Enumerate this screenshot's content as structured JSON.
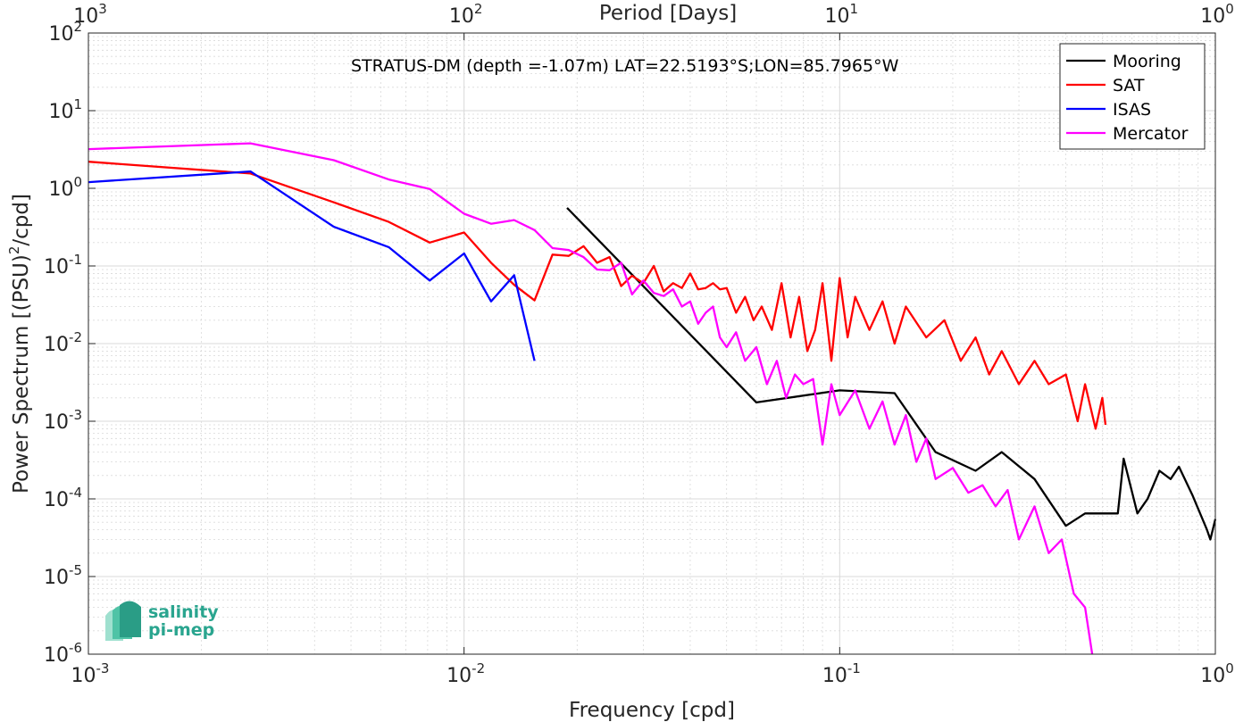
{
  "chart_data": {
    "type": "line",
    "title": "STRATUS-DM (depth =-1.07m) LAT=22.5193°S;LON=85.7965°W",
    "xlabel": "Frequency [cpd]",
    "ylabel": "Power Spectrum [(PSU)^2/cpd]",
    "top_xlabel": "Period [Days]",
    "xscale": "log",
    "yscale": "log",
    "xlim": [
      0.001,
      1
    ],
    "ylim": [
      1e-06,
      100
    ],
    "grid": true,
    "legend_position": "top-right",
    "x_ticks": [
      {
        "base": "10",
        "exp": "-3",
        "value": 0.001
      },
      {
        "base": "10",
        "exp": "-2",
        "value": 0.01
      },
      {
        "base": "10",
        "exp": "-1",
        "value": 0.1
      },
      {
        "base": "10",
        "exp": "0",
        "value": 1
      }
    ],
    "top_ticks": [
      {
        "base": "10",
        "exp": "3",
        "value": 0.001
      },
      {
        "base": "10",
        "exp": "2",
        "value": 0.01
      },
      {
        "base": "10",
        "exp": "1",
        "value": 0.1
      },
      {
        "base": "10",
        "exp": "0",
        "value": 1
      }
    ],
    "y_ticks": [
      {
        "base": "10",
        "exp": "2",
        "value": 100
      },
      {
        "base": "10",
        "exp": "1",
        "value": 10
      },
      {
        "base": "10",
        "exp": "0",
        "value": 1
      },
      {
        "base": "10",
        "exp": "-1",
        "value": 0.1
      },
      {
        "base": "10",
        "exp": "-2",
        "value": 0.01
      },
      {
        "base": "10",
        "exp": "-3",
        "value": 0.001
      },
      {
        "base": "10",
        "exp": "-4",
        "value": 0.0001
      },
      {
        "base": "10",
        "exp": "-5",
        "value": 1e-05
      },
      {
        "base": "10",
        "exp": "-6",
        "value": 1e-06
      }
    ],
    "series": [
      {
        "name": "Mooring",
        "color": "#000000",
        "points": [
          [
            0.0188,
            0.56
          ],
          [
            0.06,
            0.00175
          ],
          [
            0.1,
            0.0025
          ],
          [
            0.14,
            0.0023
          ],
          [
            0.18,
            0.0004
          ],
          [
            0.23,
            0.00023
          ],
          [
            0.27,
            0.0004
          ],
          [
            0.33,
            0.00018
          ],
          [
            0.4,
            4.5e-05
          ],
          [
            0.45,
            6.5e-05
          ],
          [
            0.55,
            6.5e-05
          ],
          [
            0.57,
            0.00033
          ],
          [
            0.62,
            6.5e-05
          ],
          [
            0.66,
            0.0001
          ],
          [
            0.71,
            0.00023
          ],
          [
            0.76,
            0.00018
          ],
          [
            0.8,
            0.00026
          ],
          [
            0.87,
            0.00011
          ],
          [
            0.95,
            4e-05
          ],
          [
            0.97,
            3e-05
          ],
          [
            1.0,
            5.5e-05
          ]
        ]
      },
      {
        "name": "SAT",
        "color": "#ff0000",
        "points": [
          [
            0.001,
            2.2
          ],
          [
            0.0027,
            1.55
          ],
          [
            0.0045,
            0.66
          ],
          [
            0.0063,
            0.37
          ],
          [
            0.0081,
            0.2
          ],
          [
            0.01,
            0.27
          ],
          [
            0.0118,
            0.11
          ],
          [
            0.0136,
            0.057
          ],
          [
            0.0154,
            0.036
          ],
          [
            0.0172,
            0.14
          ],
          [
            0.019,
            0.135
          ],
          [
            0.0208,
            0.18
          ],
          [
            0.0226,
            0.11
          ],
          [
            0.0244,
            0.13
          ],
          [
            0.0262,
            0.055
          ],
          [
            0.028,
            0.075
          ],
          [
            0.03,
            0.06
          ],
          [
            0.032,
            0.1
          ],
          [
            0.034,
            0.047
          ],
          [
            0.036,
            0.06
          ],
          [
            0.038,
            0.052
          ],
          [
            0.04,
            0.08
          ],
          [
            0.042,
            0.05
          ],
          [
            0.044,
            0.052
          ],
          [
            0.046,
            0.06
          ],
          [
            0.048,
            0.05
          ],
          [
            0.05,
            0.052
          ],
          [
            0.053,
            0.025
          ],
          [
            0.056,
            0.04
          ],
          [
            0.059,
            0.02
          ],
          [
            0.062,
            0.03
          ],
          [
            0.066,
            0.015
          ],
          [
            0.07,
            0.06
          ],
          [
            0.074,
            0.012
          ],
          [
            0.078,
            0.04
          ],
          [
            0.082,
            0.008
          ],
          [
            0.086,
            0.015
          ],
          [
            0.09,
            0.06
          ],
          [
            0.095,
            0.006
          ],
          [
            0.1,
            0.07
          ],
          [
            0.105,
            0.012
          ],
          [
            0.11,
            0.04
          ],
          [
            0.12,
            0.015
          ],
          [
            0.13,
            0.035
          ],
          [
            0.14,
            0.01
          ],
          [
            0.15,
            0.03
          ],
          [
            0.17,
            0.012
          ],
          [
            0.19,
            0.02
          ],
          [
            0.21,
            0.006
          ],
          [
            0.23,
            0.012
          ],
          [
            0.25,
            0.004
          ],
          [
            0.27,
            0.008
          ],
          [
            0.3,
            0.003
          ],
          [
            0.33,
            0.006
          ],
          [
            0.36,
            0.003
          ],
          [
            0.4,
            0.004
          ],
          [
            0.43,
            0.001
          ],
          [
            0.45,
            0.003
          ],
          [
            0.48,
            0.0008
          ],
          [
            0.5,
            0.002
          ],
          [
            0.51,
            0.0009
          ]
        ]
      },
      {
        "name": "ISAS",
        "color": "#0000ff",
        "points": [
          [
            0.001,
            1.2
          ],
          [
            0.0027,
            1.65
          ],
          [
            0.0045,
            0.32
          ],
          [
            0.0063,
            0.175
          ],
          [
            0.0081,
            0.065
          ],
          [
            0.01,
            0.145
          ],
          [
            0.0118,
            0.035
          ],
          [
            0.0136,
            0.076
          ],
          [
            0.0154,
            0.006
          ]
        ]
      },
      {
        "name": "Mercator",
        "color": "#ff00ff",
        "points": [
          [
            0.001,
            3.2
          ],
          [
            0.0027,
            3.8
          ],
          [
            0.0045,
            2.3
          ],
          [
            0.0063,
            1.3
          ],
          [
            0.0081,
            0.98
          ],
          [
            0.01,
            0.47
          ],
          [
            0.0118,
            0.35
          ],
          [
            0.0136,
            0.39
          ],
          [
            0.0154,
            0.29
          ],
          [
            0.0172,
            0.17
          ],
          [
            0.019,
            0.16
          ],
          [
            0.0208,
            0.13
          ],
          [
            0.0226,
            0.09
          ],
          [
            0.0244,
            0.088
          ],
          [
            0.0262,
            0.11
          ],
          [
            0.028,
            0.043
          ],
          [
            0.03,
            0.065
          ],
          [
            0.032,
            0.045
          ],
          [
            0.034,
            0.041
          ],
          [
            0.036,
            0.05
          ],
          [
            0.038,
            0.03
          ],
          [
            0.04,
            0.035
          ],
          [
            0.042,
            0.018
          ],
          [
            0.044,
            0.025
          ],
          [
            0.046,
            0.03
          ],
          [
            0.048,
            0.012
          ],
          [
            0.05,
            0.009
          ],
          [
            0.053,
            0.014
          ],
          [
            0.056,
            0.006
          ],
          [
            0.06,
            0.009
          ],
          [
            0.064,
            0.003
          ],
          [
            0.068,
            0.006
          ],
          [
            0.072,
            0.002
          ],
          [
            0.076,
            0.004
          ],
          [
            0.08,
            0.003
          ],
          [
            0.085,
            0.0035
          ],
          [
            0.09,
            0.0005
          ],
          [
            0.095,
            0.003
          ],
          [
            0.1,
            0.0012
          ],
          [
            0.11,
            0.0025
          ],
          [
            0.12,
            0.0008
          ],
          [
            0.13,
            0.0018
          ],
          [
            0.14,
            0.0005
          ],
          [
            0.15,
            0.0012
          ],
          [
            0.16,
            0.0003
          ],
          [
            0.17,
            0.0006
          ],
          [
            0.18,
            0.00018
          ],
          [
            0.2,
            0.00025
          ],
          [
            0.22,
            0.00012
          ],
          [
            0.24,
            0.00015
          ],
          [
            0.26,
            8e-05
          ],
          [
            0.28,
            0.00013
          ],
          [
            0.3,
            3e-05
          ],
          [
            0.33,
            8e-05
          ],
          [
            0.36,
            2e-05
          ],
          [
            0.39,
            3e-05
          ],
          [
            0.42,
            6e-06
          ],
          [
            0.45,
            4e-06
          ],
          [
            0.47,
            1e-06
          ]
        ]
      }
    ]
  },
  "logo": {
    "line1": "salinity",
    "line2": "pi-mep"
  },
  "colors": {
    "axes": "#262626",
    "grid": "#d9d9d9"
  }
}
